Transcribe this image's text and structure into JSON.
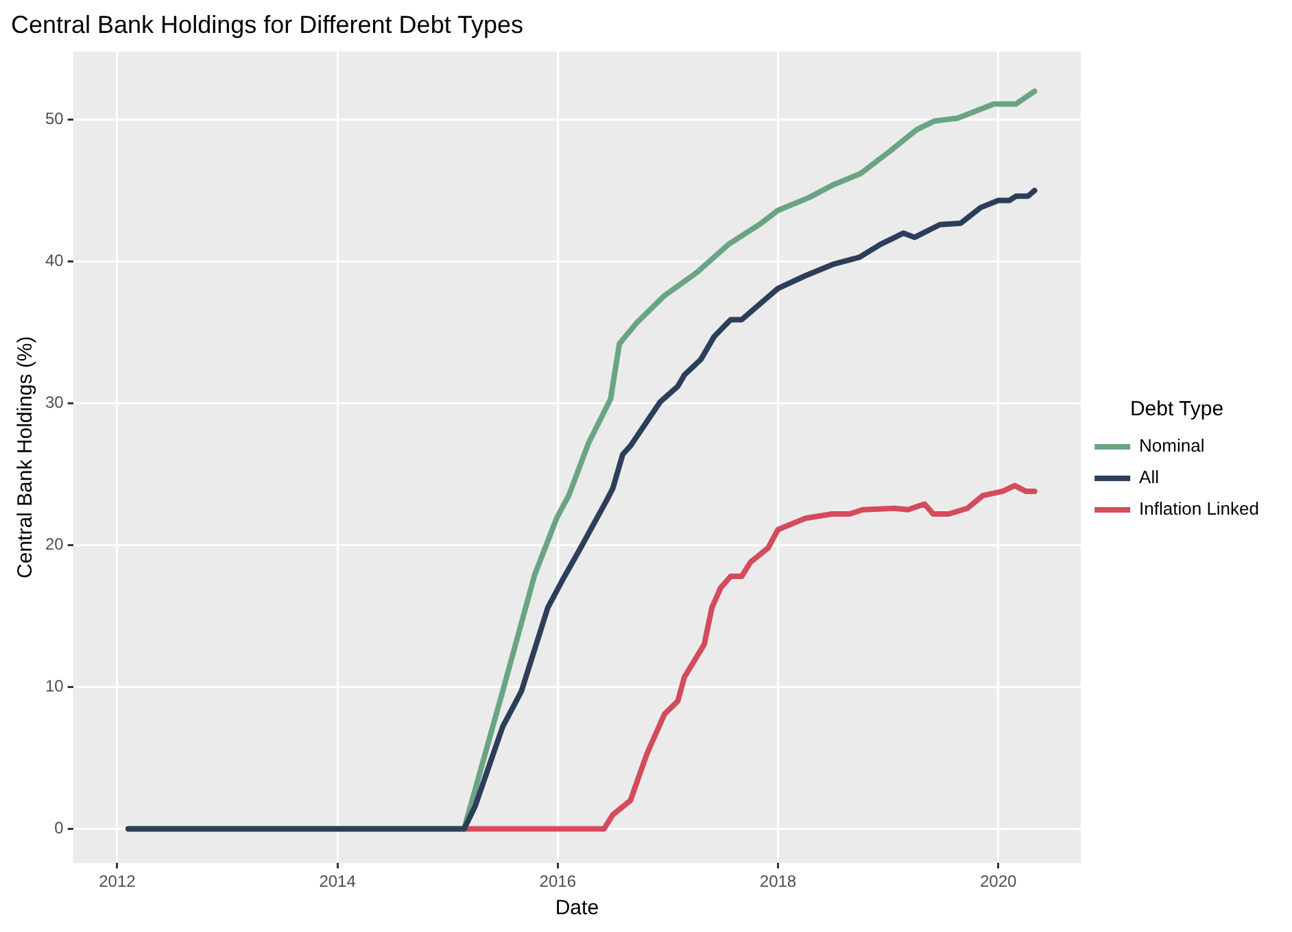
{
  "chart_data": {
    "type": "line",
    "title": "Central Bank Holdings for Different Debt Types",
    "xlabel": "Date",
    "ylabel": "Central Bank Holdings (%)",
    "legend_title": "Debt Type",
    "legend": "right",
    "grid": true,
    "marker": "none",
    "line_style": "solid",
    "xlim": [
      2011.6,
      2020.75
    ],
    "xticks": [
      2012,
      2014,
      2016,
      2018,
      2020
    ],
    "ylim": [
      -2.4,
      54.8
    ],
    "yticks": [
      0,
      10,
      20,
      30,
      40,
      50
    ],
    "series": [
      {
        "name": "Nominal",
        "color": "#6aa583",
        "x": [
          2012.1,
          2015.15,
          2015.5,
          2015.79,
          2015.99,
          2016.1,
          2016.28,
          2016.48,
          2016.56,
          2016.72,
          2016.97,
          2017.26,
          2017.55,
          2017.83,
          2018.0,
          2018.28,
          2018.5,
          2018.75,
          2019.02,
          2019.26,
          2019.42,
          2019.63,
          2019.96,
          2020.16,
          2020.33
        ],
        "values": [
          0,
          0,
          9.7,
          17.9,
          21.9,
          23.5,
          27.2,
          30.3,
          34.2,
          35.7,
          37.6,
          39.2,
          41.2,
          42.6,
          43.6,
          44.5,
          45.4,
          46.2,
          47.8,
          49.3,
          49.9,
          50.1,
          51.1,
          51.1,
          52.0
        ]
      },
      {
        "name": "All",
        "color": "#2d3e5a",
        "x": [
          2012.1,
          2015.15,
          2015.25,
          2015.5,
          2015.67,
          2015.91,
          2016.04,
          2016.2,
          2016.44,
          2016.5,
          2016.59,
          2016.66,
          2016.93,
          2017.09,
          2017.15,
          2017.3,
          2017.42,
          2017.57,
          2017.67,
          2017.91,
          2018.0,
          2018.25,
          2018.5,
          2018.74,
          2018.93,
          2019.14,
          2019.24,
          2019.47,
          2019.66,
          2019.84,
          2020.0,
          2020.1,
          2020.16,
          2020.27,
          2020.33
        ],
        "values": [
          0,
          0,
          1.6,
          7.2,
          9.7,
          15.6,
          17.5,
          19.7,
          23.1,
          24.0,
          26.4,
          27.0,
          30.1,
          31.2,
          32.0,
          33.1,
          34.7,
          35.9,
          35.9,
          37.5,
          38.1,
          39.0,
          39.8,
          40.3,
          41.2,
          42.0,
          41.7,
          42.6,
          42.7,
          43.8,
          44.3,
          44.3,
          44.6,
          44.6,
          45.0
        ]
      },
      {
        "name": "Inflation Linked",
        "color": "#d44b5b",
        "x": [
          2015.15,
          2016.42,
          2016.5,
          2016.66,
          2016.81,
          2016.97,
          2017.09,
          2017.15,
          2017.33,
          2017.4,
          2017.48,
          2017.57,
          2017.67,
          2017.75,
          2017.91,
          2018.0,
          2018.25,
          2018.49,
          2018.65,
          2018.77,
          2019.06,
          2019.18,
          2019.33,
          2019.41,
          2019.55,
          2019.72,
          2019.86,
          2020.04,
          2020.15,
          2020.25,
          2020.33
        ],
        "values": [
          0,
          0,
          1.0,
          2.0,
          5.3,
          8.1,
          9.0,
          10.7,
          13.0,
          15.6,
          17.0,
          17.8,
          17.8,
          18.8,
          19.8,
          21.1,
          21.9,
          22.2,
          22.2,
          22.5,
          22.6,
          22.5,
          22.9,
          22.2,
          22.2,
          22.6,
          23.5,
          23.8,
          24.2,
          23.8,
          23.8
        ]
      }
    ]
  }
}
